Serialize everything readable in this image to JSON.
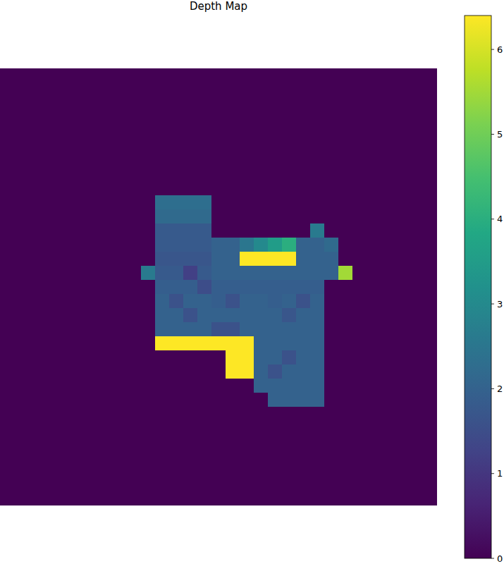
{
  "chart_data": {
    "type": "heatmap",
    "title": "Depth Map",
    "tick_labels": false,
    "zlim": [
      0,
      6.4
    ],
    "zticks": [
      0,
      1,
      2,
      3,
      4,
      5,
      6
    ],
    "z": [
      [
        0,
        0,
        0,
        0,
        0,
        0,
        0,
        0,
        0,
        0,
        0,
        0,
        0,
        0,
        0,
        0,
        0,
        0,
        0,
        0,
        0,
        0,
        0,
        0,
        0,
        0,
        0,
        0,
        0,
        0,
        0
      ],
      [
        0,
        0,
        0,
        0,
        0,
        0,
        0,
        0,
        0,
        0,
        0,
        0,
        0,
        0,
        0,
        0,
        0,
        0,
        0,
        0,
        0,
        0,
        0,
        0,
        0,
        0,
        0,
        0,
        0,
        0,
        0
      ],
      [
        0,
        0,
        0,
        0,
        0,
        0,
        0,
        0,
        0,
        0,
        0,
        0,
        0,
        0,
        0,
        0,
        0,
        0,
        0,
        0,
        0,
        0,
        0,
        0,
        0,
        0,
        0,
        0,
        0,
        0,
        0
      ],
      [
        0,
        0,
        0,
        0,
        0,
        0,
        0,
        0,
        0,
        0,
        0,
        0,
        0,
        0,
        0,
        0,
        0,
        0,
        0,
        0,
        0,
        0,
        0,
        0,
        0,
        0,
        0,
        0,
        0,
        0,
        0
      ],
      [
        0,
        0,
        0,
        0,
        0,
        0,
        0,
        0,
        0,
        0,
        0,
        0,
        0,
        0,
        0,
        0,
        0,
        0,
        0,
        0,
        0,
        0,
        0,
        0,
        0,
        0,
        0,
        0,
        0,
        0,
        0
      ],
      [
        0,
        0,
        0,
        0,
        0,
        0,
        0,
        0,
        0,
        0,
        0,
        0,
        0,
        0,
        0,
        0,
        0,
        0,
        0,
        0,
        0,
        0,
        0,
        0,
        0,
        0,
        0,
        0,
        0,
        0,
        0
      ],
      [
        0,
        0,
        0,
        0,
        0,
        0,
        0,
        0,
        0,
        0,
        0,
        0,
        0,
        0,
        0,
        0,
        0,
        0,
        0,
        0,
        0,
        0,
        0,
        0,
        0,
        0,
        0,
        0,
        0,
        0,
        0
      ],
      [
        0,
        0,
        0,
        0,
        0,
        0,
        0,
        0,
        0,
        0,
        0,
        0,
        0,
        0,
        0,
        0,
        0,
        0,
        0,
        0,
        0,
        0,
        0,
        0,
        0,
        0,
        0,
        0,
        0,
        0,
        0
      ],
      [
        0,
        0,
        0,
        0,
        0,
        0,
        0,
        0,
        0,
        0,
        0,
        0,
        0,
        0,
        0,
        0,
        0,
        0,
        0,
        0,
        0,
        0,
        0,
        0,
        0,
        0,
        0,
        0,
        0,
        0,
        0
      ],
      [
        0,
        0,
        0,
        0,
        0,
        0,
        0,
        0,
        0,
        0,
        0,
        2.3,
        2.3,
        2.3,
        2.3,
        0,
        0,
        0,
        0,
        0,
        0,
        0,
        0,
        0,
        0,
        0,
        0,
        0,
        0,
        0,
        0
      ],
      [
        0,
        0,
        0,
        0,
        0,
        0,
        0,
        0,
        0,
        0,
        0,
        2.2,
        2.2,
        2.2,
        2.2,
        0,
        0,
        0,
        0,
        0,
        0,
        0,
        0,
        0,
        0,
        0,
        0,
        0,
        0,
        0,
        0
      ],
      [
        0,
        0,
        0,
        0,
        0,
        0,
        0,
        0,
        0,
        0,
        0,
        1.8,
        1.8,
        1.8,
        1.8,
        0,
        0,
        0,
        0,
        0,
        0,
        0,
        2.6,
        0,
        0,
        0,
        0,
        0,
        0,
        0,
        0
      ],
      [
        0,
        0,
        0,
        0,
        0,
        0,
        0,
        0,
        0,
        0,
        0,
        1.8,
        1.8,
        1.8,
        1.8,
        2.0,
        2.0,
        2.5,
        3.0,
        3.5,
        4.0,
        2.0,
        2.0,
        2.2,
        0,
        0,
        0,
        0,
        0,
        0,
        0
      ],
      [
        0,
        0,
        0,
        0,
        0,
        0,
        0,
        0,
        0,
        0,
        0,
        1.7,
        1.7,
        1.7,
        1.7,
        2.0,
        2.0,
        6.4,
        6.4,
        6.4,
        6.4,
        2.0,
        2.0,
        2.0,
        0,
        0,
        0,
        0,
        0,
        0,
        0
      ],
      [
        0,
        0,
        0,
        0,
        0,
        0,
        0,
        0,
        0,
        0,
        2.6,
        1.8,
        1.8,
        1.2,
        1.8,
        2.0,
        2.0,
        2.0,
        2.0,
        2.0,
        2.0,
        2.0,
        2.0,
        2.0,
        5.5,
        0,
        0,
        0,
        0,
        0,
        0
      ],
      [
        0,
        0,
        0,
        0,
        0,
        0,
        0,
        0,
        0,
        0,
        0,
        1.9,
        1.9,
        1.9,
        1.5,
        1.9,
        1.9,
        1.9,
        1.9,
        1.9,
        1.9,
        1.9,
        1.9,
        0,
        0,
        0,
        0,
        0,
        0,
        0,
        0
      ],
      [
        0,
        0,
        0,
        0,
        0,
        0,
        0,
        0,
        0,
        0,
        0,
        2.0,
        1.6,
        2.0,
        2.0,
        1.9,
        1.6,
        2.0,
        2.0,
        1.9,
        2.0,
        1.6,
        2.0,
        0,
        0,
        0,
        0,
        0,
        0,
        0,
        0
      ],
      [
        0,
        0,
        0,
        0,
        0,
        0,
        0,
        0,
        0,
        0,
        0,
        2.0,
        2.0,
        1.6,
        2.0,
        2.0,
        2.0,
        2.0,
        2.0,
        2.0,
        1.7,
        2.0,
        2.0,
        0,
        0,
        0,
        0,
        0,
        0,
        0,
        0
      ],
      [
        0,
        0,
        0,
        0,
        0,
        0,
        0,
        0,
        0,
        0,
        0,
        2.0,
        2.0,
        2.0,
        2.0,
        1.6,
        1.6,
        2.0,
        2.0,
        2.0,
        2.0,
        2.0,
        2.0,
        0,
        0,
        0,
        0,
        0,
        0,
        0,
        0
      ],
      [
        0,
        0,
        0,
        0,
        0,
        0,
        0,
        0,
        0,
        0,
        0,
        6.4,
        6.4,
        6.4,
        6.4,
        6.4,
        6.4,
        6.4,
        2.0,
        2.0,
        2.0,
        2.0,
        2.0,
        0,
        0,
        0,
        0,
        0,
        0,
        0,
        0
      ],
      [
        0,
        0,
        0,
        0,
        0,
        0,
        0,
        0,
        0,
        0,
        0,
        0,
        0,
        0,
        0,
        0,
        6.4,
        6.4,
        2.0,
        2.0,
        1.6,
        2.0,
        2.0,
        0,
        0,
        0,
        0,
        0,
        0,
        0,
        0
      ],
      [
        0,
        0,
        0,
        0,
        0,
        0,
        0,
        0,
        0,
        0,
        0,
        0,
        0,
        0,
        0,
        0,
        6.4,
        6.4,
        2.0,
        1.6,
        2.0,
        2.0,
        2.0,
        0,
        0,
        0,
        0,
        0,
        0,
        0,
        0
      ],
      [
        0,
        0,
        0,
        0,
        0,
        0,
        0,
        0,
        0,
        0,
        0,
        0,
        0,
        0,
        0,
        0,
        0,
        0,
        2.0,
        2.0,
        2.0,
        2.0,
        2.0,
        0,
        0,
        0,
        0,
        0,
        0,
        0,
        0
      ],
      [
        0,
        0,
        0,
        0,
        0,
        0,
        0,
        0,
        0,
        0,
        0,
        0,
        0,
        0,
        0,
        0,
        0,
        0,
        0,
        2.0,
        2.0,
        2.0,
        2.0,
        0,
        0,
        0,
        0,
        0,
        0,
        0,
        0
      ],
      [
        0,
        0,
        0,
        0,
        0,
        0,
        0,
        0,
        0,
        0,
        0,
        0,
        0,
        0,
        0,
        0,
        0,
        0,
        0,
        0,
        0,
        0,
        0,
        0,
        0,
        0,
        0,
        0,
        0,
        0,
        0
      ],
      [
        0,
        0,
        0,
        0,
        0,
        0,
        0,
        0,
        0,
        0,
        0,
        0,
        0,
        0,
        0,
        0,
        0,
        0,
        0,
        0,
        0,
        0,
        0,
        0,
        0,
        0,
        0,
        0,
        0,
        0,
        0
      ],
      [
        0,
        0,
        0,
        0,
        0,
        0,
        0,
        0,
        0,
        0,
        0,
        0,
        0,
        0,
        0,
        0,
        0,
        0,
        0,
        0,
        0,
        0,
        0,
        0,
        0,
        0,
        0,
        0,
        0,
        0,
        0
      ],
      [
        0,
        0,
        0,
        0,
        0,
        0,
        0,
        0,
        0,
        0,
        0,
        0,
        0,
        0,
        0,
        0,
        0,
        0,
        0,
        0,
        0,
        0,
        0,
        0,
        0,
        0,
        0,
        0,
        0,
        0,
        0
      ],
      [
        0,
        0,
        0,
        0,
        0,
        0,
        0,
        0,
        0,
        0,
        0,
        0,
        0,
        0,
        0,
        0,
        0,
        0,
        0,
        0,
        0,
        0,
        0,
        0,
        0,
        0,
        0,
        0,
        0,
        0,
        0
      ],
      [
        0,
        0,
        0,
        0,
        0,
        0,
        0,
        0,
        0,
        0,
        0,
        0,
        0,
        0,
        0,
        0,
        0,
        0,
        0,
        0,
        0,
        0,
        0,
        0,
        0,
        0,
        0,
        0,
        0,
        0,
        0
      ],
      [
        0,
        0,
        0,
        0,
        0,
        0,
        0,
        0,
        0,
        0,
        0,
        0,
        0,
        0,
        0,
        0,
        0,
        0,
        0,
        0,
        0,
        0,
        0,
        0,
        0,
        0,
        0,
        0,
        0,
        0,
        0
      ]
    ]
  }
}
